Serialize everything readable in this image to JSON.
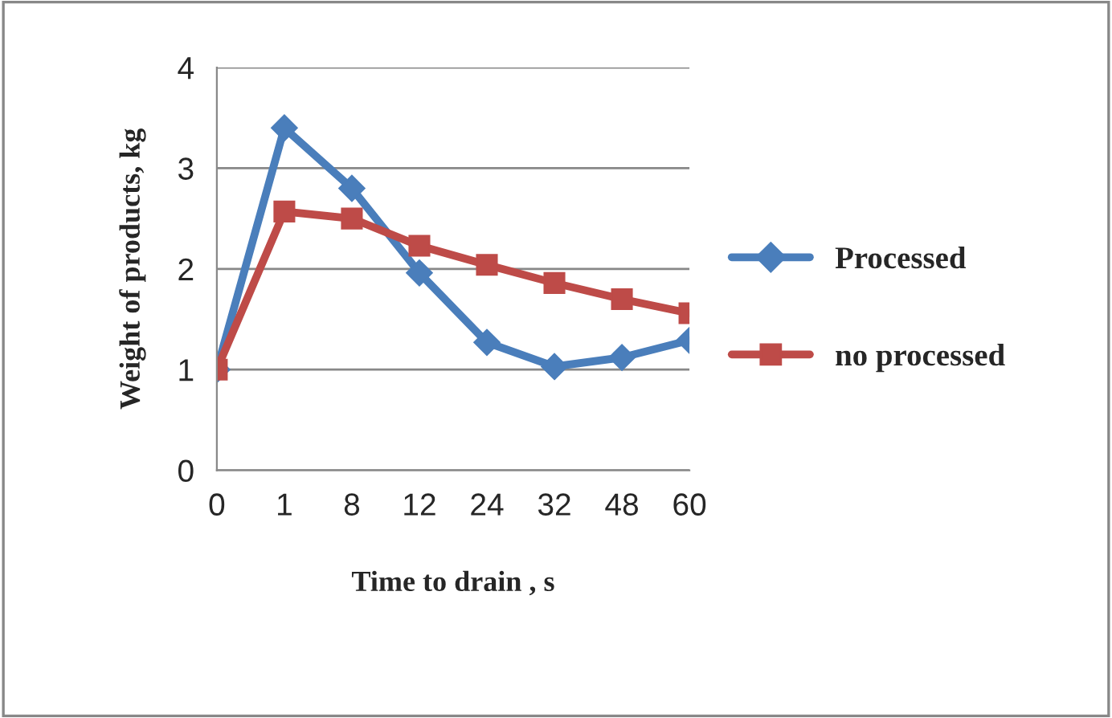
{
  "chart_data": {
    "type": "line",
    "xlabel": "Time to drain , s",
    "ylabel": "Weight of products, kg",
    "categories": [
      "0",
      "1",
      "8",
      "12",
      "24",
      "32",
      "48",
      "60"
    ],
    "series": [
      {
        "name": "Processed",
        "color": "#4a7ebb",
        "marker": "diamond",
        "values": [
          1.0,
          3.4,
          2.8,
          1.96,
          1.27,
          1.03,
          1.12,
          1.29
        ]
      },
      {
        "name": "no processed",
        "color": "#be4b48",
        "marker": "square",
        "values": [
          1.0,
          2.57,
          2.5,
          2.23,
          2.04,
          1.86,
          1.7,
          1.56
        ]
      }
    ],
    "ylim": [
      0,
      4
    ],
    "yticks": [
      0,
      1,
      2,
      3,
      4
    ],
    "grid": "y",
    "legend": "right",
    "line_style": "solid"
  }
}
